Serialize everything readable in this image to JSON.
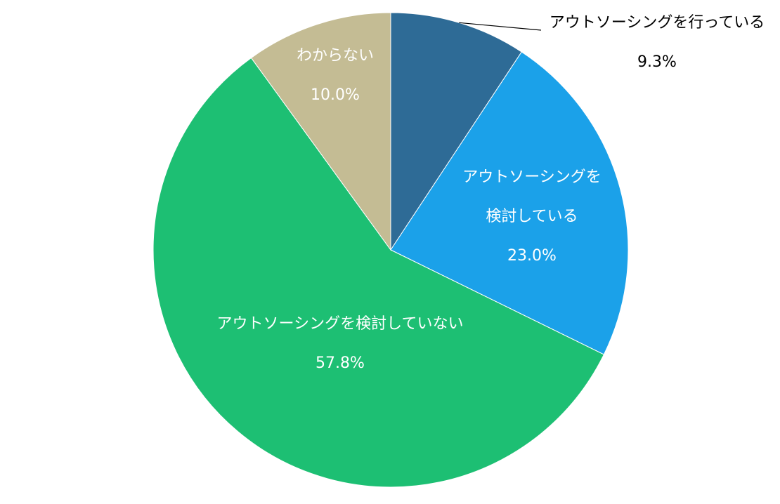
{
  "chart_data": {
    "type": "pie",
    "start_angle_deg": 0,
    "direction": "clockwise",
    "slices": [
      {
        "label_lines": [
          "アウトソーシングを行っている"
        ],
        "value": 9.3,
        "value_text": "9.3%",
        "color": "#2e6b96",
        "label_color": "#000000",
        "label_outside": true
      },
      {
        "label_lines": [
          "アウトソーシングを",
          "検討している"
        ],
        "value": 23.0,
        "value_text": "23.0%",
        "color": "#1ba1e9",
        "label_color": "#ffffff",
        "label_outside": false
      },
      {
        "label_lines": [
          "アウトソーシングを検討していない"
        ],
        "value": 57.8,
        "value_text": "57.8%",
        "color": "#1dbf73",
        "label_color": "#ffffff",
        "label_outside": false
      },
      {
        "label_lines": [
          "わからない"
        ],
        "value": 10.0,
        "value_text": "10.0%",
        "color": "#c4bc94",
        "label_color": "#ffffff",
        "label_outside": false
      }
    ]
  }
}
